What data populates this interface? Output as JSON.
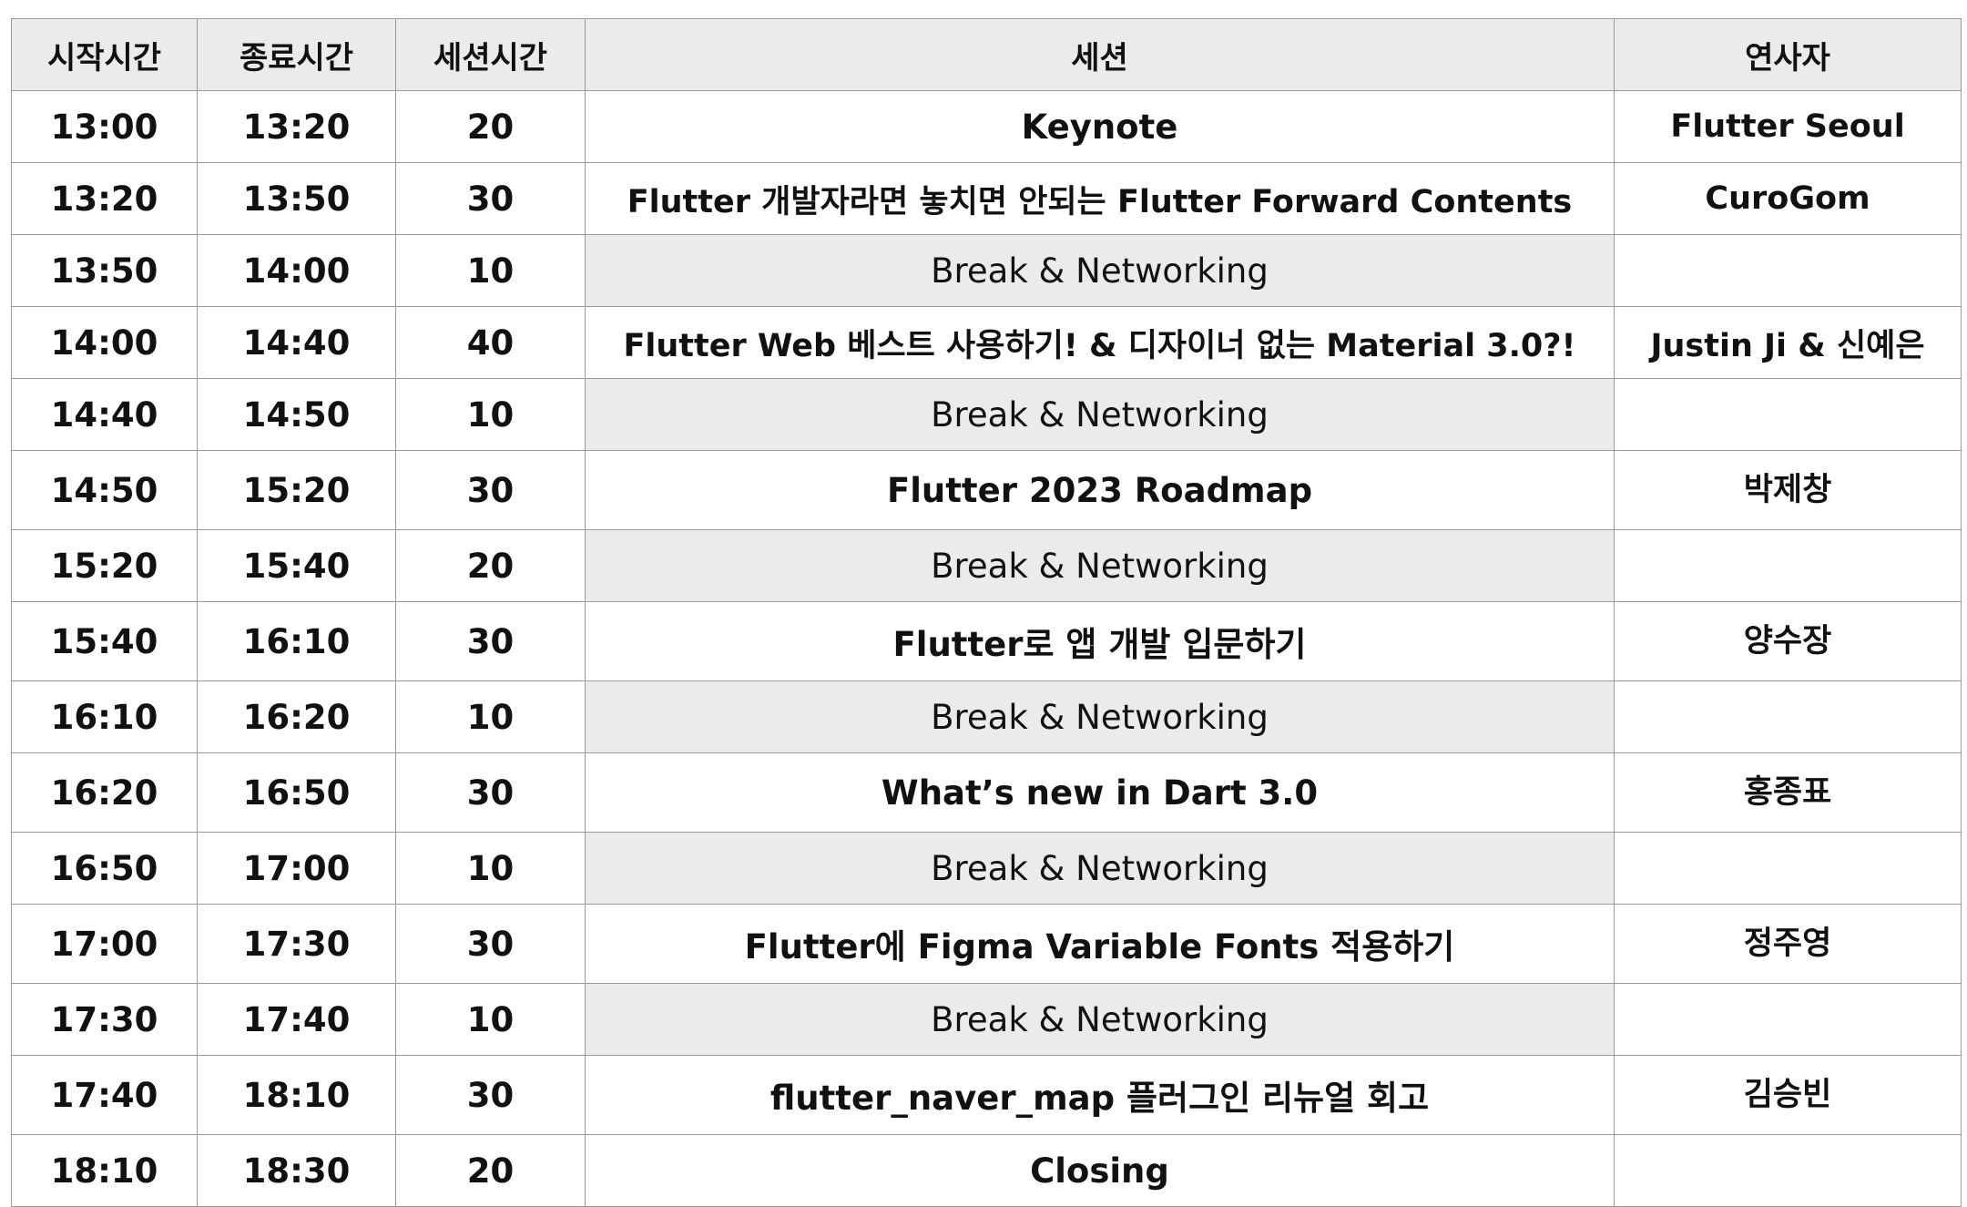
{
  "table": {
    "headers": {
      "start": "시작시간",
      "end": "종료시간",
      "duration": "세션시간",
      "session": "세션",
      "speaker": "연사자"
    },
    "rows": [
      {
        "start": "13:00",
        "end": "13:20",
        "duration": "20",
        "session": "Keynote",
        "speaker": "Flutter Seoul",
        "is_break": false
      },
      {
        "start": "13:20",
        "end": "13:50",
        "duration": "30",
        "session": "Flutter 개발자라면 놓치면 안되는 Flutter Forward Contents",
        "speaker": "CuroGom",
        "is_break": false
      },
      {
        "start": "13:50",
        "end": "14:00",
        "duration": "10",
        "session": "Break & Networking",
        "speaker": "",
        "is_break": true
      },
      {
        "start": "14:00",
        "end": "14:40",
        "duration": "40",
        "session": "Flutter Web 베스트 사용하기! & 디자이너 없는 Material 3.0?!",
        "speaker": "Justin Ji & 신예은",
        "is_break": false
      },
      {
        "start": "14:40",
        "end": "14:50",
        "duration": "10",
        "session": "Break & Networking",
        "speaker": "",
        "is_break": true
      },
      {
        "start": "14:50",
        "end": "15:20",
        "duration": "30",
        "session": "Flutter 2023 Roadmap",
        "speaker": "박제창",
        "is_break": false
      },
      {
        "start": "15:20",
        "end": "15:40",
        "duration": "20",
        "session": "Break & Networking",
        "speaker": "",
        "is_break": true
      },
      {
        "start": "15:40",
        "end": "16:10",
        "duration": "30",
        "session": "Flutter로 앱 개발 입문하기",
        "speaker": "양수장",
        "is_break": false
      },
      {
        "start": "16:10",
        "end": "16:20",
        "duration": "10",
        "session": "Break & Networking",
        "speaker": "",
        "is_break": true
      },
      {
        "start": "16:20",
        "end": "16:50",
        "duration": "30",
        "session": "What’s new in Dart 3.0",
        "speaker": "홍종표",
        "is_break": false
      },
      {
        "start": "16:50",
        "end": "17:00",
        "duration": "10",
        "session": "Break & Networking",
        "speaker": "",
        "is_break": true
      },
      {
        "start": "17:00",
        "end": "17:30",
        "duration": "30",
        "session": "Flutter에 Figma Variable Fonts 적용하기",
        "speaker": "정주영",
        "is_break": false
      },
      {
        "start": "17:30",
        "end": "17:40",
        "duration": "10",
        "session": "Break & Networking",
        "speaker": "",
        "is_break": true
      },
      {
        "start": "17:40",
        "end": "18:10",
        "duration": "30",
        "session": "flutter_naver_map 플러그인 리뉴얼 회고",
        "speaker": "김승빈",
        "is_break": false
      },
      {
        "start": "18:10",
        "end": "18:30",
        "duration": "20",
        "session": "Closing",
        "speaker": "",
        "is_break": false
      }
    ]
  },
  "colors": {
    "header_bg": "#ebebeb",
    "break_bg": "#ebebeb",
    "border": "#9a9a9a",
    "text": "#111111"
  }
}
